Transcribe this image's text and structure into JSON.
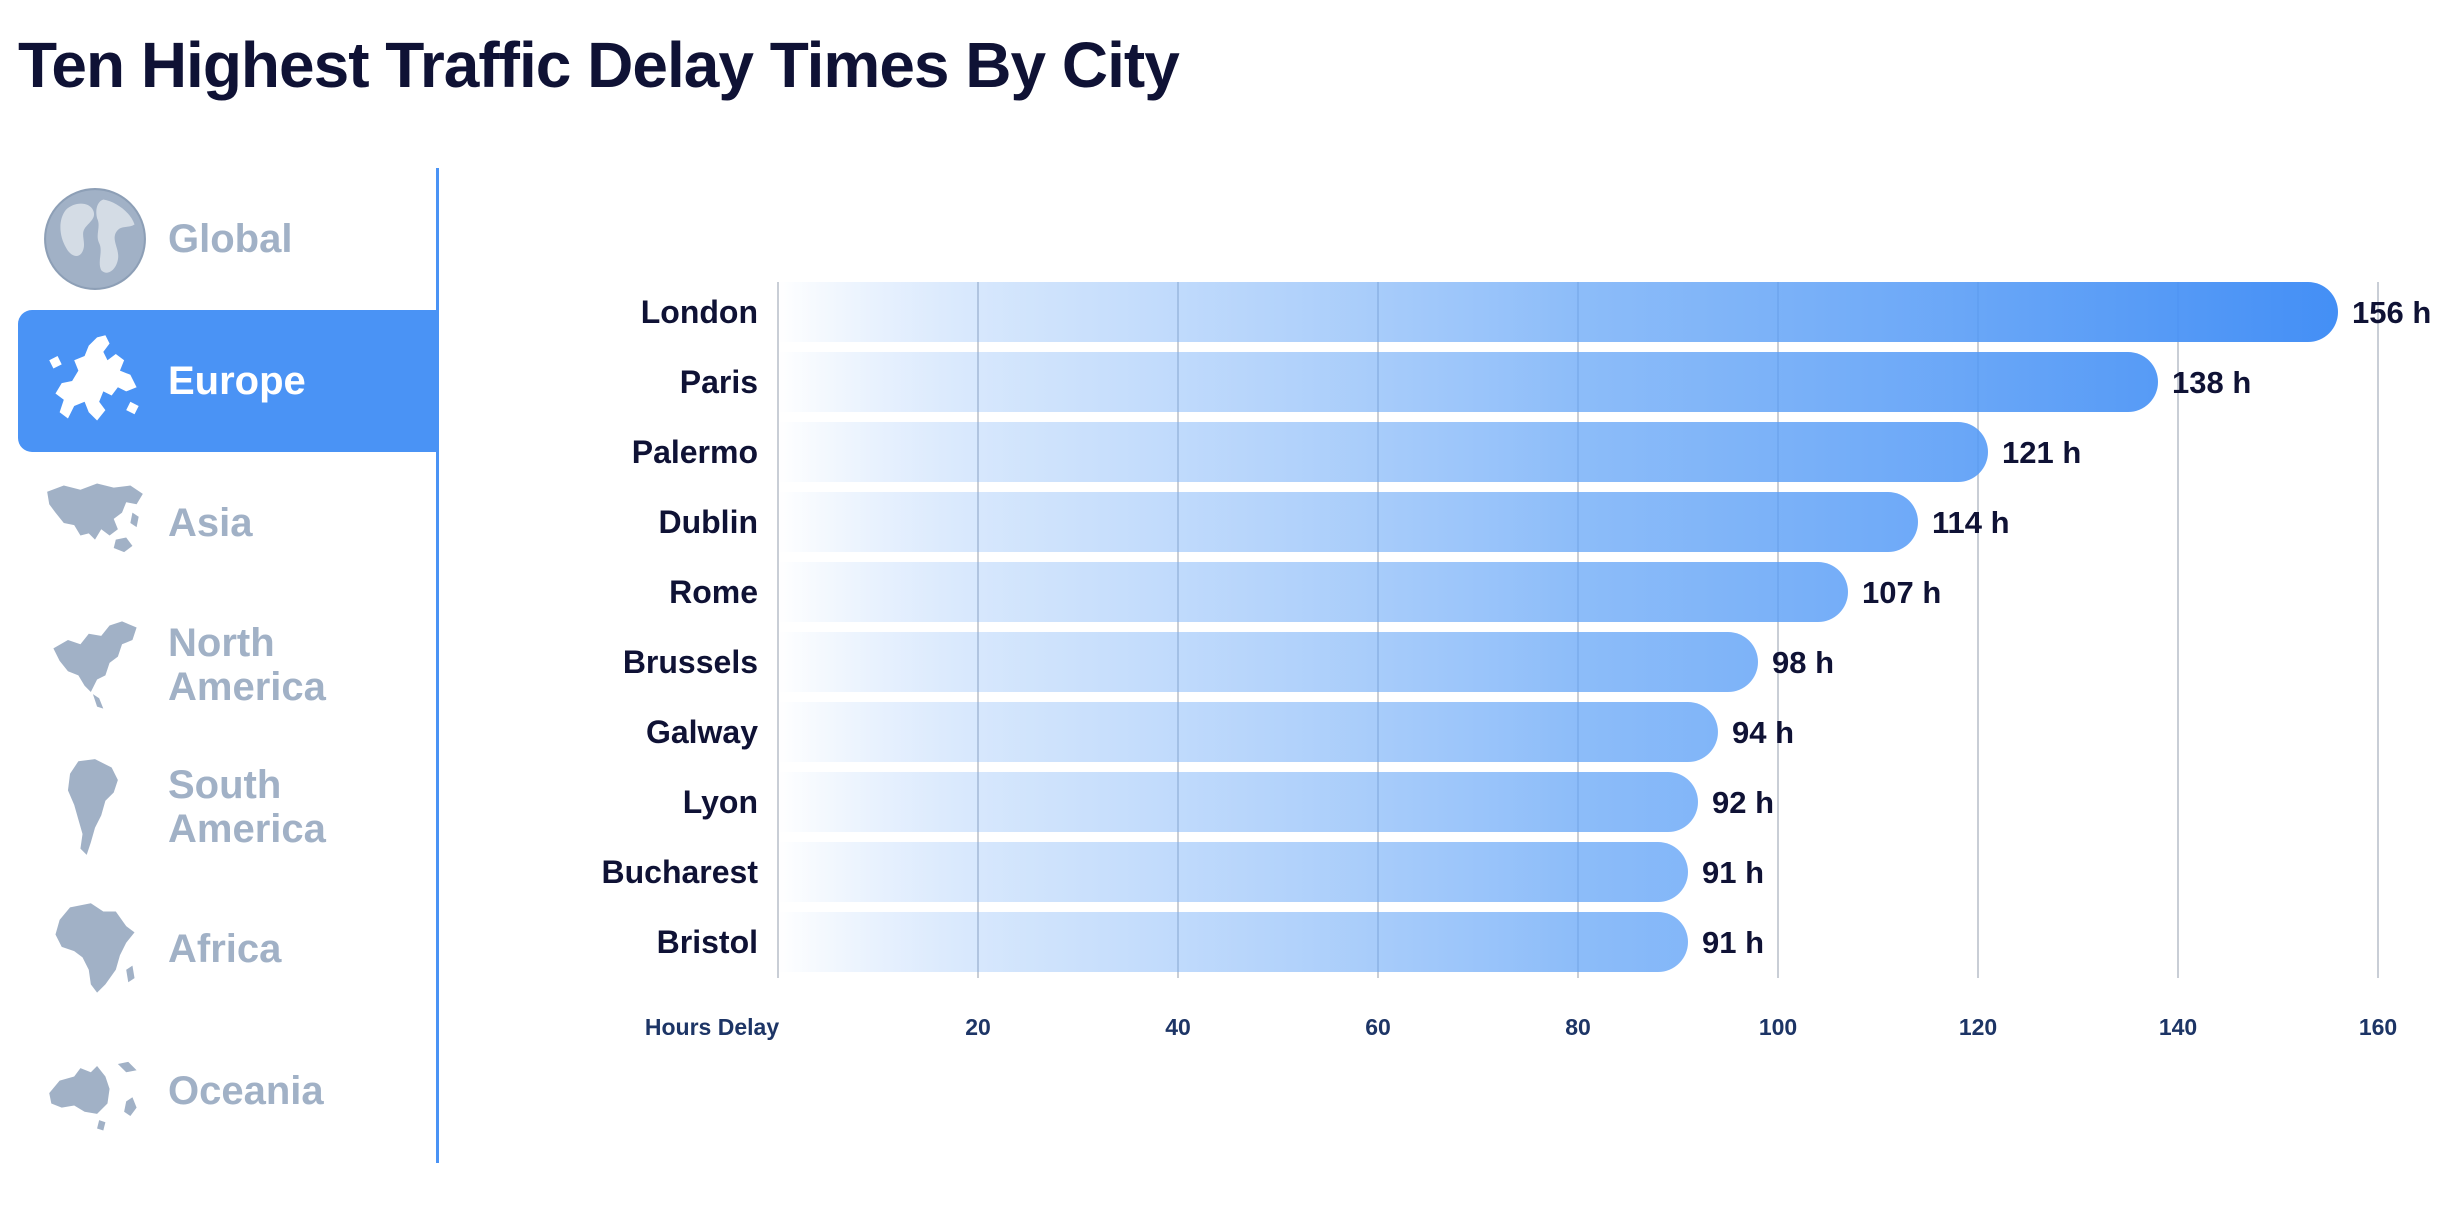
{
  "title": "Ten Highest Traffic Delay Times By City",
  "colors": {
    "accent": "#4a93f5",
    "inactive": "#a1b1c6",
    "title": "#0f1235",
    "axis_text": "#1d3566",
    "grid": "#c9ced6"
  },
  "sidebar": {
    "items": [
      {
        "label": "Global",
        "icon": "globe-icon",
        "active": false
      },
      {
        "label": "Europe",
        "icon": "europe-map-icon",
        "active": true
      },
      {
        "label": "Asia",
        "icon": "asia-map-icon",
        "active": false
      },
      {
        "label": "North America",
        "icon": "north-america-map-icon",
        "active": false
      },
      {
        "label": "South America",
        "icon": "south-america-map-icon",
        "active": false
      },
      {
        "label": "Africa",
        "icon": "africa-map-icon",
        "active": false
      },
      {
        "label": "Oceania",
        "icon": "oceania-map-icon",
        "active": false
      }
    ]
  },
  "chart_data": {
    "type": "bar",
    "orientation": "horizontal",
    "categories": [
      "London",
      "Paris",
      "Palermo",
      "Dublin",
      "Rome",
      "Brussels",
      "Galway",
      "Lyon",
      "Bucharest",
      "Bristol"
    ],
    "values": [
      156,
      138,
      121,
      114,
      107,
      98,
      94,
      92,
      91,
      91
    ],
    "value_labels": [
      "156 h",
      "138 h",
      "121 h",
      "114 h",
      "107 h",
      "98 h",
      "94 h",
      "92 h",
      "91 h",
      "91 h"
    ],
    "xlabel": "Hours Delay",
    "xlim": [
      0,
      160
    ],
    "xticks": [
      20,
      40,
      60,
      80,
      100,
      120,
      140,
      160
    ],
    "grid": true
  }
}
